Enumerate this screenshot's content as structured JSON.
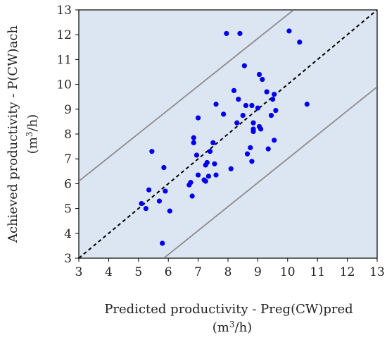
{
  "chart_data": {
    "type": "scatter",
    "title": "",
    "xlabel": "Predicted  productivity - Preg(CW)pred",
    "xunit_base": "(m",
    "xunit_sup": "3",
    "xunit_tail": "/h)",
    "ylabel": "Achieved productivity - P(CW)ach",
    "yunit_base": "(m",
    "yunit_sup": "3",
    "yunit_tail": "/h)",
    "xlim": [
      3,
      13
    ],
    "ylim": [
      3,
      13
    ],
    "xticks": [
      3,
      4,
      5,
      6,
      7,
      8,
      9,
      10,
      11,
      12,
      13
    ],
    "yticks": [
      3,
      4,
      5,
      6,
      7,
      8,
      9,
      10,
      11,
      12,
      13
    ],
    "grid": false,
    "colors": {
      "background": "#dce6f2",
      "points": "#0000ee",
      "identity_line": "#000000",
      "bound_lines": "#8c8c8c"
    },
    "lines": [
      {
        "name": "identity",
        "style": "dashed",
        "points": [
          [
            3,
            3
          ],
          [
            13,
            13
          ]
        ]
      },
      {
        "name": "upper-bound",
        "style": "solid",
        "points": [
          [
            3,
            6.1
          ],
          [
            10.2,
            13
          ]
        ]
      },
      {
        "name": "lower-bound",
        "style": "solid",
        "points": [
          [
            5.85,
            3
          ],
          [
            13,
            9.9
          ]
        ]
      }
    ],
    "points": [
      [
        5.1,
        5.2
      ],
      [
        5.25,
        5.0
      ],
      [
        5.35,
        5.75
      ],
      [
        5.45,
        7.3
      ],
      [
        5.7,
        5.3
      ],
      [
        5.8,
        3.6
      ],
      [
        5.85,
        6.65
      ],
      [
        5.9,
        5.7
      ],
      [
        6.05,
        4.9
      ],
      [
        6.7,
        5.95
      ],
      [
        6.75,
        6.05
      ],
      [
        6.8,
        5.5
      ],
      [
        6.85,
        7.85
      ],
      [
        6.85,
        7.65
      ],
      [
        6.95,
        7.15
      ],
      [
        7.0,
        8.65
      ],
      [
        7.0,
        6.35
      ],
      [
        7.2,
        6.15
      ],
      [
        7.25,
        6.1
      ],
      [
        7.25,
        6.75
      ],
      [
        7.3,
        6.85
      ],
      [
        7.35,
        6.3
      ],
      [
        7.4,
        7.3
      ],
      [
        7.5,
        7.65
      ],
      [
        7.55,
        6.8
      ],
      [
        7.6,
        6.35
      ],
      [
        7.6,
        9.2
      ],
      [
        7.85,
        8.8
      ],
      [
        7.95,
        12.05
      ],
      [
        8.1,
        6.6
      ],
      [
        8.2,
        9.75
      ],
      [
        8.3,
        8.45
      ],
      [
        8.35,
        9.4
      ],
      [
        8.4,
        12.05
      ],
      [
        8.5,
        8.75
      ],
      [
        8.55,
        10.75
      ],
      [
        8.6,
        9.15
      ],
      [
        8.65,
        7.2
      ],
      [
        8.75,
        7.45
      ],
      [
        8.8,
        6.9
      ],
      [
        8.8,
        9.15
      ],
      [
        8.85,
        8.2
      ],
      [
        8.85,
        8.1
      ],
      [
        8.85,
        8.45
      ],
      [
        9.0,
        9.05
      ],
      [
        9.05,
        10.4
      ],
      [
        9.05,
        8.3
      ],
      [
        9.1,
        8.2
      ],
      [
        9.15,
        10.2
      ],
      [
        9.3,
        9.7
      ],
      [
        9.35,
        7.4
      ],
      [
        9.45,
        8.75
      ],
      [
        9.5,
        9.4
      ],
      [
        9.55,
        9.6
      ],
      [
        9.55,
        7.75
      ],
      [
        9.6,
        8.95
      ],
      [
        10.05,
        12.15
      ],
      [
        10.4,
        11.7
      ],
      [
        10.65,
        9.2
      ]
    ]
  }
}
